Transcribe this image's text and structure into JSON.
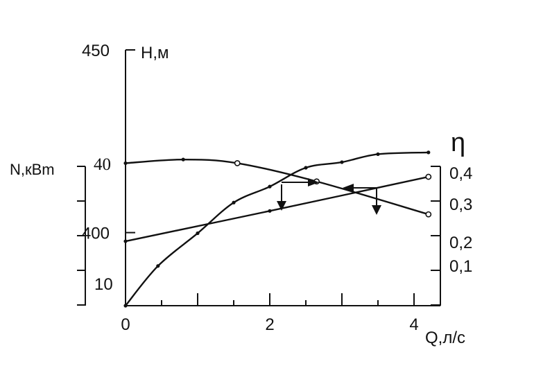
{
  "chart_data": {
    "type": "line",
    "x_axis": {
      "label": "Q,л/с",
      "ticks": [
        0,
        2,
        4
      ],
      "range": [
        0,
        4.3
      ]
    },
    "head_axis": {
      "label": "H,м",
      "ticks": [
        "450",
        "400"
      ],
      "range": [
        380,
        450
      ]
    },
    "power_axis": {
      "label": "N,кВm",
      "ticks": [
        "40",
        "10"
      ],
      "range": [
        0,
        40
      ]
    },
    "efficiency_axis": {
      "label": "η",
      "ticks": [
        "0,4",
        "0,3",
        "0,2",
        "0,1"
      ],
      "range": [
        0,
        0.4
      ]
    },
    "series": [
      {
        "key": "H",
        "axis": "head",
        "x": [
          0,
          0.8,
          1.55,
          2.65,
          4.2
        ],
        "y": [
          419,
          420,
          419,
          414,
          405
        ],
        "open_markers": [
          false,
          false,
          true,
          true,
          true
        ]
      },
      {
        "key": "N",
        "axis": "power",
        "x": [
          0,
          2.0,
          4.2
        ],
        "y": [
          18.5,
          27.2,
          37
        ],
        "open_markers": [
          false,
          false,
          true
        ]
      },
      {
        "key": "eta",
        "axis": "efficiency",
        "x": [
          0,
          0.45,
          1.0,
          1.5,
          2.0,
          2.5,
          3.0,
          3.5,
          4.2
        ],
        "y": [
          0,
          0.114,
          0.208,
          0.296,
          0.342,
          0.396,
          0.412,
          0.435,
          0.44
        ],
        "open_markers": [
          false,
          false,
          false,
          false,
          false,
          false,
          false,
          false,
          false
        ]
      }
    ],
    "grid": false,
    "legend": "none"
  }
}
